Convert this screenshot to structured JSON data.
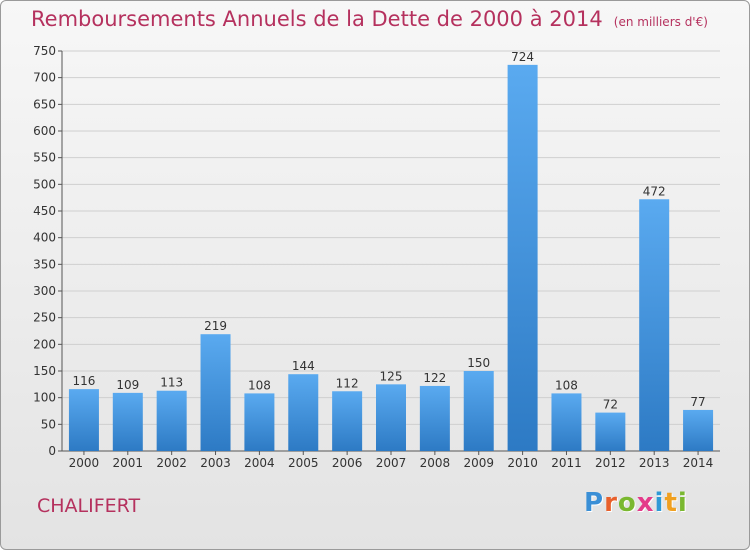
{
  "title": "Remboursements Annuels de la Dette de 2000 à 2014",
  "unit": "(en milliers d'€)",
  "commune": "CHALIFERT",
  "logo": {
    "text": "Proxiti",
    "letter_colors": [
      "#3a8fd6",
      "#e8602c",
      "#7ab830",
      "#e43a8a",
      "#2f9ad6",
      "#f0a020",
      "#7ab830"
    ]
  },
  "colors": {
    "title": "#b5315e",
    "bar_light": "#5aaaf0",
    "bar_dark": "#2d7ac4",
    "grid": "#cfcfcf"
  },
  "chart_data": {
    "type": "bar",
    "categories": [
      "2000",
      "2001",
      "2002",
      "2003",
      "2004",
      "2005",
      "2006",
      "2007",
      "2008",
      "2009",
      "2010",
      "2011",
      "2012",
      "2013",
      "2014"
    ],
    "values": [
      116,
      109,
      113,
      219,
      108,
      144,
      112,
      125,
      122,
      150,
      724,
      108,
      72,
      472,
      77
    ],
    "ylim": [
      0,
      750
    ],
    "yticks": [
      0,
      50,
      100,
      150,
      200,
      250,
      300,
      350,
      400,
      450,
      500,
      550,
      600,
      650,
      700,
      750
    ],
    "grid": true
  }
}
